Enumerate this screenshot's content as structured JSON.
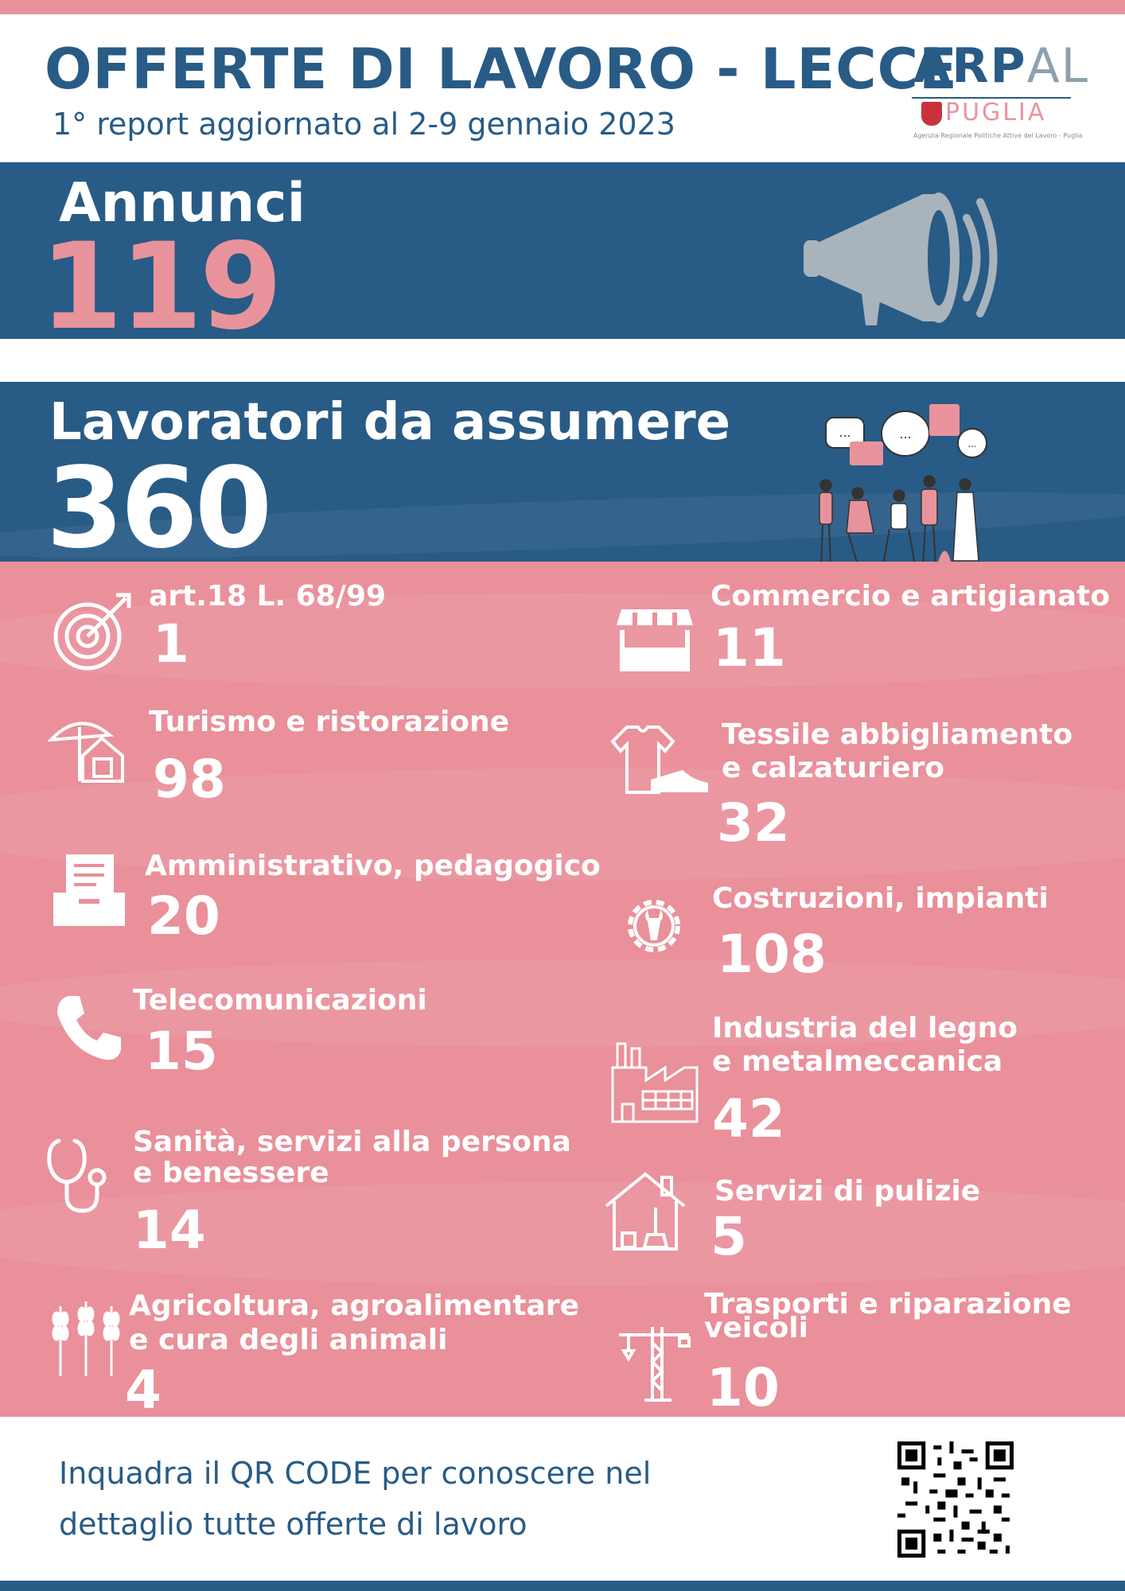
{
  "header": {
    "title": "OFFERTE DI LAVORO - LECCE",
    "subtitle": "1° report aggiornato al 2-9 gennaio 2023"
  },
  "logo": {
    "arp": "ARP",
    "pal": "AL",
    "region": "PUGLIA",
    "caption": "Agenzia Regionale Politiche Attive del Lavoro - Puglia"
  },
  "annunci": {
    "label": "Annunci",
    "value": "119"
  },
  "lavoratori": {
    "label": "Lavoratori da assumere",
    "value": "360"
  },
  "categories": [
    {
      "label": "art.18 L. 68/99",
      "value": "1",
      "icon": "target-icon"
    },
    {
      "label": "Commercio e artigianato",
      "value": "11",
      "icon": "shop-stall-icon"
    },
    {
      "label": "Turismo e ristorazione",
      "value": "98",
      "icon": "beach-umbrella-house-icon"
    },
    {
      "label": "Tessile abbigliamento",
      "label2": "e calzaturiero",
      "value": "32",
      "icon": "tshirt-shoe-icon"
    },
    {
      "label": "Amministrativo, pedagogico",
      "value": "20",
      "icon": "document-tray-icon"
    },
    {
      "label": "Costruzioni, impianti",
      "value": "108",
      "icon": "gear-wrench-icon"
    },
    {
      "label": "Telecomunicazioni",
      "value": "15",
      "icon": "phone-icon"
    },
    {
      "label": "Industria del legno",
      "label2": "e metalmeccanica",
      "value": "42",
      "icon": "factory-icon"
    },
    {
      "label": "Sanità, servizi alla persona",
      "label2": "e benessere",
      "value": "14",
      "icon": "stethoscope-icon"
    },
    {
      "label": "Servizi di pulizie",
      "value": "5",
      "icon": "house-cleaning-icon"
    },
    {
      "label": "Agricoltura,  agroalimentare",
      "label2": "e cura degli animali",
      "value": "4",
      "icon": "wheat-icon"
    },
    {
      "label": "Trasporti e riparazione",
      "label2": "veicoli",
      "value": "10",
      "icon": "crane-icon"
    }
  ],
  "footer": {
    "line1": "Inquadra il QR CODE per conoscere nel",
    "line2": "dettaglio tutte offerte di lavoro"
  },
  "colors": {
    "blue": "#285b86",
    "pink": "#e9909a",
    "white": "#ffffff"
  }
}
